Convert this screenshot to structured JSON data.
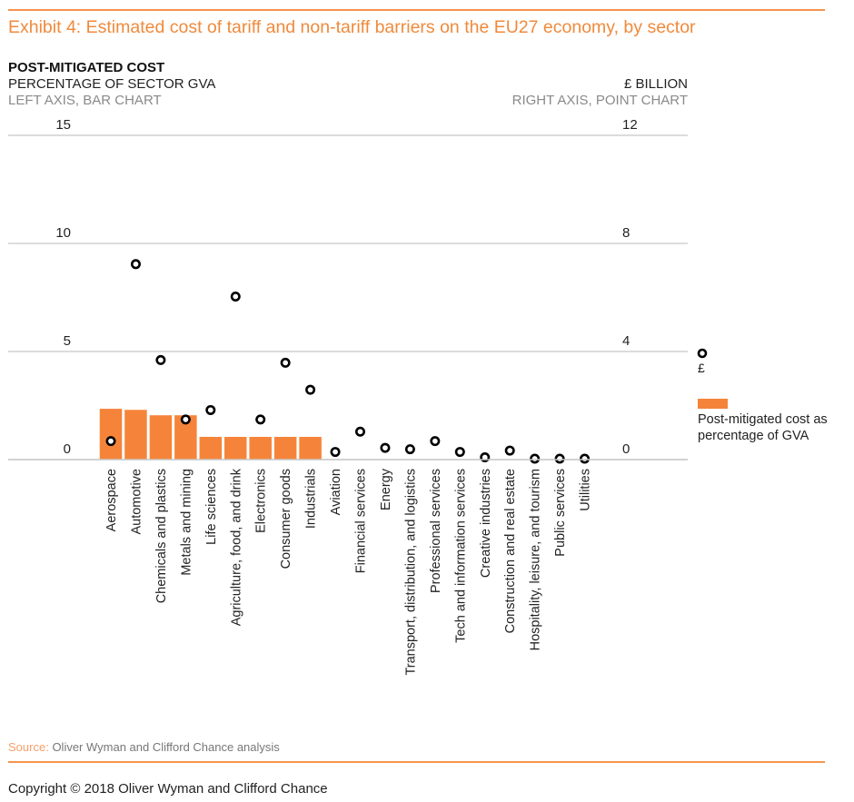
{
  "header": {
    "title": "Exhibit 4: Estimated cost of tariff and non-tariff barriers on the EU27 economy, by sector",
    "left_axis_title": "POST-MITIGATED  COST",
    "left_axis_subtitle": "PERCENTAGE OF SECTOR GVA",
    "left_axis_note": "LEFT AXIS, BAR CHART",
    "right_axis_title": "£ BILLION",
    "right_axis_note": "RIGHT AXIS, POINT CHART"
  },
  "colors": {
    "accent": "#f08a3c",
    "bar": "#f5843a",
    "point": "#000000",
    "grid": "#c8c8c8"
  },
  "legend": {
    "point_label": "£",
    "bar_label": "Post-mitigated cost as percentage of GVA"
  },
  "footer": {
    "source_label": "Source:",
    "source_text": "Oliver Wyman and Clifford Chance analysis",
    "copyright": "Copyright © 2018 Oliver Wyman and Clifford Chance"
  },
  "chart_data": {
    "type": "bar",
    "title": "Exhibit 4: Estimated cost of tariff and non-tariff barriers on the EU27 economy, by sector",
    "xlabel": "",
    "ylabel": "Post-mitigated cost, percentage of sector GVA",
    "y2label": "£ billion",
    "ylim": [
      0,
      15
    ],
    "y2lim": [
      0,
      12
    ],
    "yticks": [
      "0",
      "5",
      "10",
      "15"
    ],
    "y2ticks": [
      "0",
      "4",
      "8",
      "12"
    ],
    "grid": true,
    "legend_position": "right",
    "categories": [
      "Aerospace",
      "Automotive",
      "Chemicals and plastics",
      "Metals and mining",
      "Life sciences",
      "Agriculture,  food, and drink",
      "Electronics",
      "Consumer goods",
      "Industrials",
      "Aviation",
      "Financial services",
      "Energy",
      "Transport, distribution, and logistics",
      "Professional services",
      "Tech and information services",
      "Creative industries",
      "Construction and real estate",
      "Hospitality, leisure, and tourism",
      "Public services",
      "Utilities"
    ],
    "series": [
      {
        "name": "Post-mitigated cost as percentage of GVA",
        "type": "bar",
        "axis": "left",
        "values": [
          2.35,
          2.3,
          2.05,
          2.05,
          1.05,
          1.05,
          1.05,
          1.05,
          1.05,
          0,
          0,
          0,
          0,
          0,
          0,
          0,
          0,
          0,
          0,
          0
        ]
      },
      {
        "name": "£",
        "type": "scatter",
        "axis": "right",
        "values": [
          0.65,
          7.2,
          3.65,
          1.45,
          1.8,
          6.0,
          1.45,
          3.55,
          2.55,
          0.25,
          1.0,
          0.4,
          0.35,
          0.65,
          0.25,
          0.05,
          0.3,
          0.0,
          0.0,
          0.0
        ]
      }
    ]
  }
}
